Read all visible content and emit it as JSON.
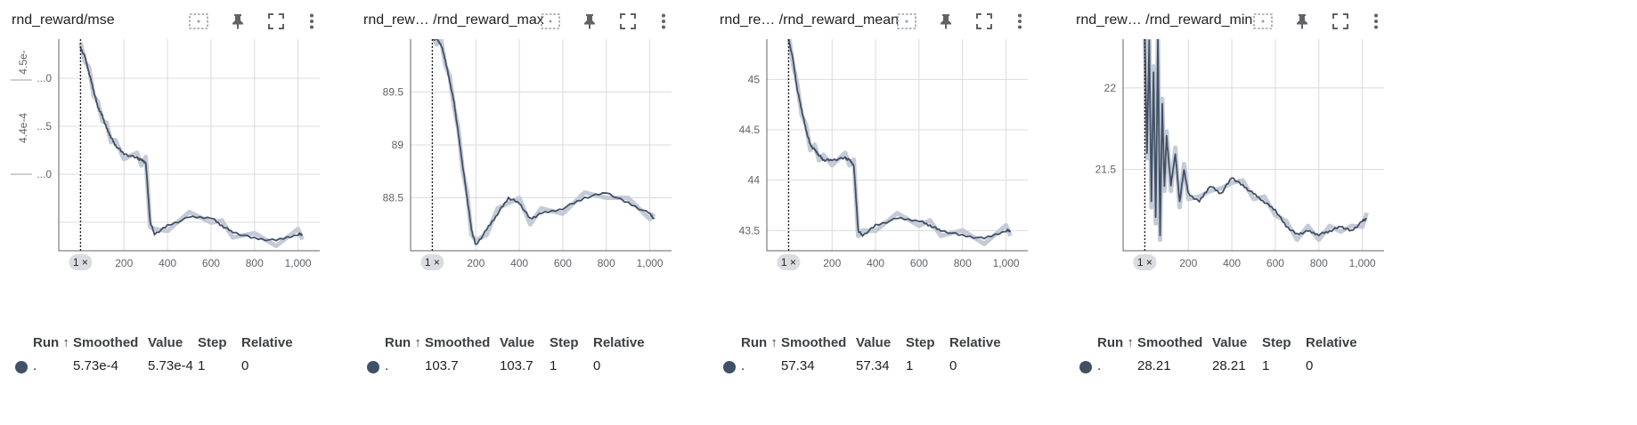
{
  "colors": {
    "series": "#425066",
    "series_light": "#c5cbd6",
    "grid": "#dadce0",
    "gap": "#f1f3f4"
  },
  "icons": [
    "select-region-icon",
    "pin-icon",
    "fullscreen-icon",
    "more-vert-icon"
  ],
  "table_headers": {
    "run": "Run ↑",
    "smoothed": "Smoothed",
    "value": "Value",
    "step": "Step",
    "relative": "Relative"
  },
  "cards": [
    {
      "title": "rnd_reward/mse",
      "x_ticks": [
        "200",
        "400",
        "600",
        "800",
        "1,000"
      ],
      "y_ticks": [
        "...0",
        "...5",
        "...0"
      ],
      "y_exp_labels": [
        "4.5e-",
        "4.4e-4"
      ],
      "step_marker": "1 ×",
      "row": {
        "run": ".",
        "smoothed": "5.73e-4",
        "value": "5.73e-4",
        "step": "1",
        "relative": "0"
      },
      "chart_data": {
        "type": "line",
        "xlim": [
          -100,
          1100
        ],
        "x_ticks": [
          200,
          400,
          600,
          800,
          1000
        ],
        "x": [
          0,
          20,
          40,
          60,
          80,
          100,
          120,
          140,
          160,
          200,
          260,
          280,
          300,
          320,
          340,
          400,
          500,
          600,
          650,
          700,
          800,
          900,
          1000,
          1020
        ],
        "y": [
          100,
          96,
          88,
          80,
          72,
          68,
          62,
          58,
          54,
          50,
          48,
          47,
          46,
          18,
          12,
          16,
          20,
          20,
          16,
          13,
          10,
          9,
          12,
          12
        ]
      }
    },
    {
      "title": "rnd_rew… /rnd_reward_max",
      "x_ticks": [
        "200",
        "400",
        "600",
        "800",
        "1,000"
      ],
      "y_ticks": [
        "89.5",
        "89",
        "88.5"
      ],
      "y_exp_labels": [],
      "step_marker": "1 ×",
      "row": {
        "run": ".",
        "smoothed": "103.7",
        "value": "103.7",
        "step": "1",
        "relative": "0"
      },
      "chart_data": {
        "type": "line",
        "xlim": [
          -100,
          1100
        ],
        "ylim": [
          88.0,
          90.0
        ],
        "y_ticks": [
          89.5,
          89.0,
          88.5
        ],
        "x_ticks": [
          200,
          400,
          600,
          800,
          1000
        ],
        "x": [
          0,
          20,
          40,
          60,
          80,
          100,
          120,
          140,
          160,
          180,
          200,
          250,
          300,
          350,
          400,
          450,
          500,
          600,
          700,
          800,
          900,
          1000,
          1020
        ],
        "y": [
          90.0,
          90.0,
          89.95,
          89.8,
          89.6,
          89.4,
          89.1,
          88.8,
          88.5,
          88.2,
          88.05,
          88.2,
          88.35,
          88.5,
          88.45,
          88.3,
          88.35,
          88.4,
          88.5,
          88.55,
          88.45,
          88.35,
          88.3
        ]
      }
    },
    {
      "title": "rnd_re… /rnd_reward_mean",
      "x_ticks": [
        "200",
        "400",
        "600",
        "800",
        "1,000"
      ],
      "y_ticks": [
        "45",
        "44.5",
        "44",
        "43.5"
      ],
      "y_exp_labels": [],
      "step_marker": "1 ×",
      "row": {
        "run": ".",
        "smoothed": "57.34",
        "value": "57.34",
        "step": "1",
        "relative": "0"
      },
      "chart_data": {
        "type": "line",
        "xlim": [
          -100,
          1100
        ],
        "ylim": [
          43.3,
          45.4
        ],
        "y_ticks": [
          45,
          44.5,
          44,
          43.5
        ],
        "x_ticks": [
          200,
          400,
          600,
          800,
          1000
        ],
        "x": [
          0,
          20,
          40,
          60,
          80,
          100,
          120,
          140,
          160,
          200,
          260,
          280,
          300,
          320,
          340,
          400,
          500,
          600,
          650,
          700,
          800,
          900,
          1000,
          1020
        ],
        "y": [
          45.4,
          45.2,
          44.9,
          44.7,
          44.5,
          44.35,
          44.3,
          44.25,
          44.2,
          44.2,
          44.22,
          44.2,
          44.15,
          43.5,
          43.45,
          43.55,
          43.62,
          43.6,
          43.55,
          43.5,
          43.45,
          43.42,
          43.5,
          43.5
        ]
      }
    },
    {
      "title": "rnd_rew… /rnd_reward_min",
      "x_ticks": [
        "200",
        "400",
        "600",
        "800",
        "1,000"
      ],
      "y_ticks": [
        "22",
        "21.5"
      ],
      "y_exp_labels": [],
      "step_marker": "1 ×",
      "row": {
        "run": ".",
        "smoothed": "28.21",
        "value": "28.21",
        "step": "1",
        "relative": "0"
      },
      "chart_data": {
        "type": "line",
        "xlim": [
          -100,
          1100
        ],
        "ylim": [
          21.0,
          22.3
        ],
        "y_ticks": [
          22,
          21.5
        ],
        "x_ticks": [
          200,
          400,
          600,
          800,
          1000
        ],
        "x": [
          0,
          10,
          20,
          30,
          40,
          50,
          60,
          70,
          80,
          90,
          100,
          120,
          140,
          160,
          180,
          200,
          250,
          300,
          350,
          400,
          450,
          500,
          550,
          600,
          650,
          700,
          750,
          800,
          850,
          900,
          950,
          1000,
          1020
        ],
        "y": [
          22.3,
          21.6,
          22.3,
          21.3,
          22.1,
          21.2,
          22.3,
          21.1,
          21.9,
          21.4,
          21.7,
          21.4,
          21.6,
          21.3,
          21.5,
          21.35,
          21.3,
          21.4,
          21.35,
          21.45,
          21.4,
          21.35,
          21.3,
          21.25,
          21.15,
          21.1,
          21.12,
          21.1,
          21.12,
          21.15,
          21.12,
          21.18,
          21.2
        ]
      }
    }
  ]
}
